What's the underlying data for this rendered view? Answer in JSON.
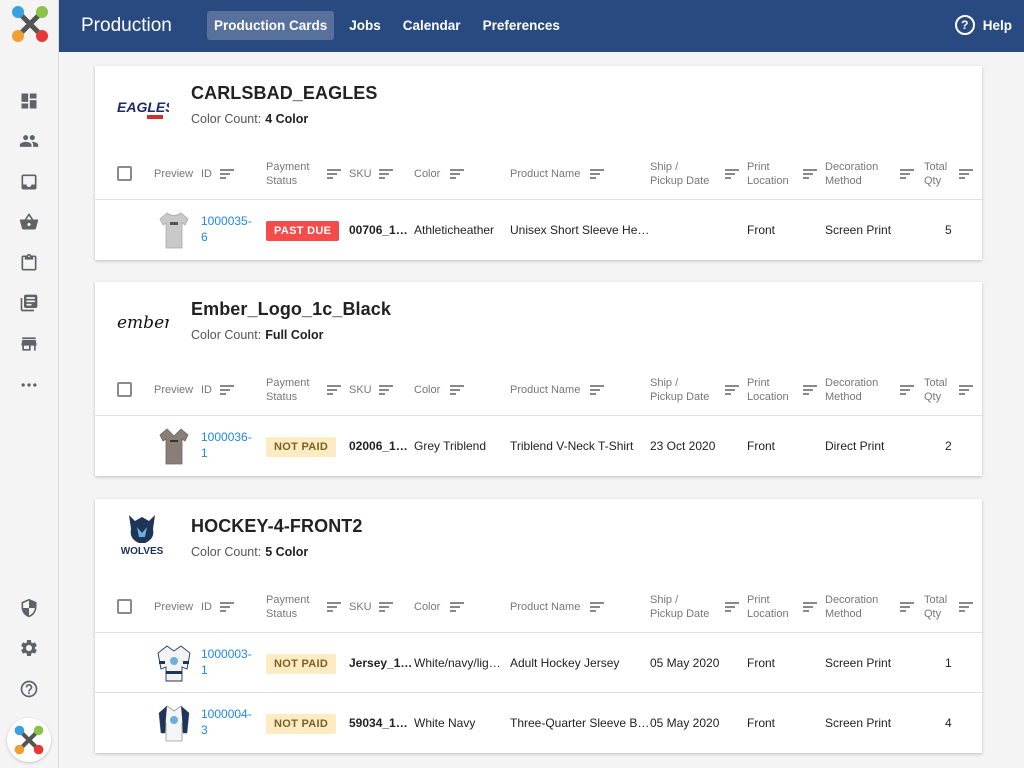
{
  "header": {
    "title": "Production",
    "nav": [
      "Production Cards",
      "Jobs",
      "Calendar",
      "Preferences"
    ],
    "help_label": "Help"
  },
  "sidebar": {
    "icons": [
      "dashboard-icon",
      "people-icon",
      "inbox-icon",
      "basket-icon",
      "clipboard-icon",
      "list-icon",
      "store-icon",
      "more-icon",
      "shield-icon",
      "gear-icon",
      "help-circle-icon"
    ]
  },
  "colors": {
    "accent": "#284a80",
    "link": "#1e88e5",
    "past_due": "#f44b4b",
    "not_paid": "#fdebc3"
  },
  "columns": {
    "preview": "Preview",
    "id": "ID",
    "payment_1": "Payment",
    "payment_2": "Status",
    "sku": "SKU",
    "color": "Color",
    "product": "Product Name",
    "ship_1": "Ship /",
    "ship_2": "Pickup Date",
    "print_1": "Print",
    "print_2": "Location",
    "deco_1": "Decoration",
    "deco_2": "Method",
    "qty_1": "Total",
    "qty_2": "Qty"
  },
  "color_count_label": "Color Count:",
  "cards": [
    {
      "title": "CARLSBAD_EAGLES",
      "color_count": "4 Color",
      "logo": "eagles-logo",
      "logo_text": "EAGLES",
      "rows": [
        {
          "id_1": "1000035-",
          "id_2": "6",
          "status": "PAST DUE",
          "sku": "00706_1…",
          "color": "Athleticheather",
          "product": "Unisex Short Sleeve He…",
          "ship": "",
          "location": "Front",
          "method": "Screen Print",
          "qty": "5"
        }
      ]
    },
    {
      "title": "Ember_Logo_1c_Black",
      "color_count": "Full Color",
      "logo": "ember-logo",
      "logo_text": "ember",
      "rows": [
        {
          "id_1": "1000036-",
          "id_2": "1",
          "status": "NOT PAID",
          "sku": "02006_1…",
          "color": "Grey Triblend",
          "product": "Triblend V-Neck T-Shirt",
          "ship": "23 Oct 2020",
          "location": "Front",
          "method": "Direct Print",
          "qty": "2"
        }
      ]
    },
    {
      "title": "HOCKEY-4-FRONT2",
      "color_count": "5 Color",
      "logo": "wolves-logo",
      "logo_text": "WOLVES",
      "rows": [
        {
          "id_1": "1000003-",
          "id_2": "1",
          "status": "NOT PAID",
          "sku": "Jersey_1…",
          "color": "White/navy/lig…",
          "product": "Adult Hockey Jersey",
          "ship": "05 May 2020",
          "location": "Front",
          "method": "Screen Print",
          "qty": "1"
        },
        {
          "id_1": "1000004-",
          "id_2": "3",
          "status": "NOT PAID",
          "sku": "59034_1…",
          "color": "White Navy",
          "product": "Three-Quarter Sleeve B…",
          "ship": "05 May 2020",
          "location": "Front",
          "method": "Screen Print",
          "qty": "4"
        }
      ]
    }
  ]
}
